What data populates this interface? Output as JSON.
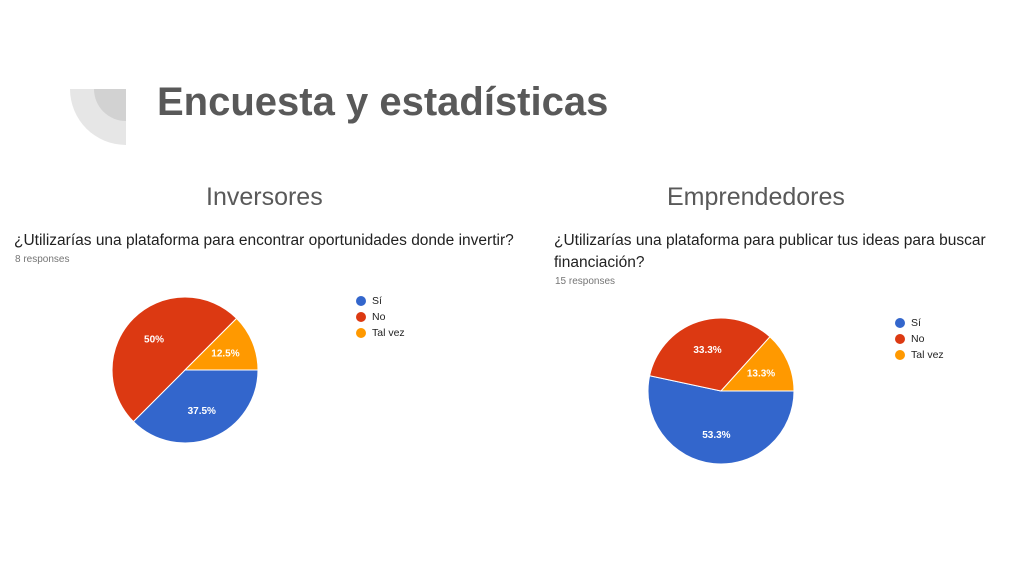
{
  "slide": {
    "title": "Encuesta y estadísticas"
  },
  "colors": {
    "si": "#3366cc",
    "no": "#dc3912",
    "tal_vez": "#ff9900",
    "title": "#595959"
  },
  "chart_data": [
    {
      "type": "pie",
      "section": "Inversores",
      "title": "¿Utilizarías una plataforma para encontrar oportunidades donde invertir?",
      "subtitle": "8 responses",
      "legend_position": "right",
      "slices": [
        {
          "label": "Sí",
          "value": 37.5,
          "display": "37.5%",
          "color": "#3366cc"
        },
        {
          "label": "No",
          "value": 50,
          "display": "50%",
          "color": "#dc3912"
        },
        {
          "label": "Tal vez",
          "value": 12.5,
          "display": "12.5%",
          "color": "#ff9900"
        }
      ]
    },
    {
      "type": "pie",
      "section": "Emprendedores",
      "title": "¿Utilizarías una plataforma para publicar tus ideas para buscar financiación?",
      "subtitle": "15 responses",
      "legend_position": "right",
      "slices": [
        {
          "label": "Sí",
          "value": 53.3,
          "display": "53.3%",
          "color": "#3366cc"
        },
        {
          "label": "No",
          "value": 33.3,
          "display": "33.3%",
          "color": "#dc3912"
        },
        {
          "label": "Tal vez",
          "value": 13.3,
          "display": "13.3%",
          "color": "#ff9900"
        }
      ]
    }
  ]
}
